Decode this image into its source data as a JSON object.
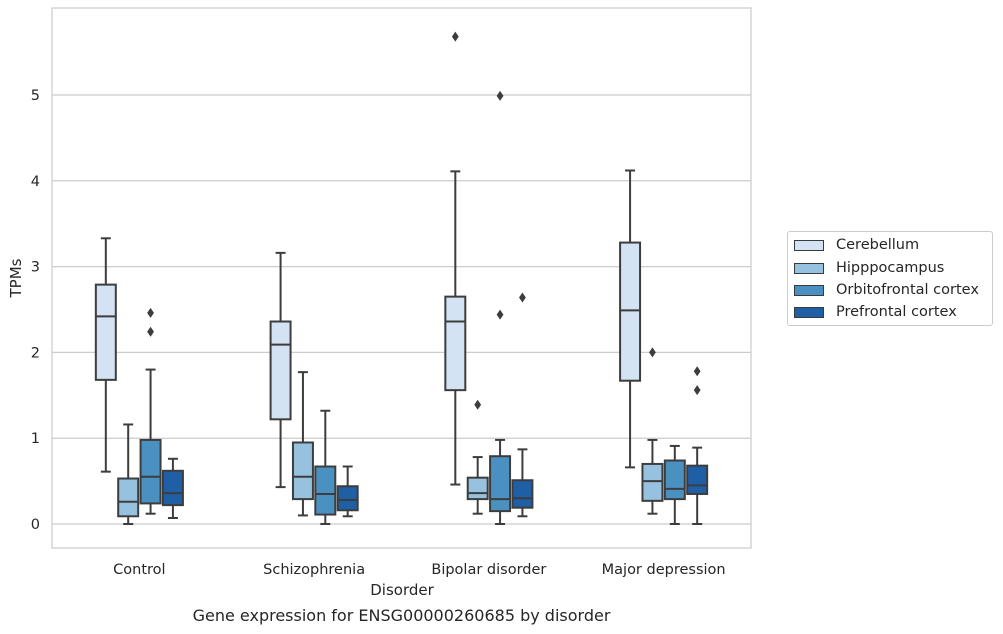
{
  "chart_data": {
    "type": "box",
    "xlabel": "Disorder",
    "ylabel": "TPMs",
    "caption": "Gene expression for ENSG00000260685 by disorder",
    "ylim": [
      -0.28,
      6.0
    ],
    "yticks": [
      0,
      1,
      2,
      3,
      4,
      5
    ],
    "grid": true,
    "legend_position": "right",
    "categories": [
      "Control",
      "Schizophrenia",
      "Bipolar disorder",
      "Major depression"
    ],
    "series": [
      {
        "name": "Cerebellum",
        "color": "#d4e3f3",
        "boxes": [
          {
            "whisker_low": 0.61,
            "q1": 1.68,
            "median": 2.42,
            "q3": 2.79,
            "whisker_high": 3.33,
            "outliers": []
          },
          {
            "whisker_low": 0.43,
            "q1": 1.22,
            "median": 2.09,
            "q3": 2.36,
            "whisker_high": 3.16,
            "outliers": []
          },
          {
            "whisker_low": 0.46,
            "q1": 1.56,
            "median": 2.36,
            "q3": 2.65,
            "whisker_high": 4.11,
            "outliers": [
              5.68
            ]
          },
          {
            "whisker_low": 0.66,
            "q1": 1.67,
            "median": 2.49,
            "q3": 3.28,
            "whisker_high": 4.12,
            "outliers": []
          }
        ]
      },
      {
        "name": "Hipppocampus",
        "color": "#97c2df",
        "boxes": [
          {
            "whisker_low": 0.0,
            "q1": 0.09,
            "median": 0.26,
            "q3": 0.53,
            "whisker_high": 1.16,
            "outliers": []
          },
          {
            "whisker_low": 0.1,
            "q1": 0.29,
            "median": 0.55,
            "q3": 0.95,
            "whisker_high": 1.77,
            "outliers": []
          },
          {
            "whisker_low": 0.12,
            "q1": 0.29,
            "median": 0.36,
            "q3": 0.54,
            "whisker_high": 0.78,
            "outliers": [
              1.39
            ]
          },
          {
            "whisker_low": 0.12,
            "q1": 0.27,
            "median": 0.5,
            "q3": 0.7,
            "whisker_high": 0.98,
            "outliers": [
              2.0
            ]
          }
        ]
      },
      {
        "name": "Orbitofrontal cortex",
        "color": "#4a91c2",
        "boxes": [
          {
            "whisker_low": 0.12,
            "q1": 0.24,
            "median": 0.55,
            "q3": 0.98,
            "whisker_high": 1.8,
            "outliers": [
              2.24,
              2.46
            ]
          },
          {
            "whisker_low": 0.0,
            "q1": 0.11,
            "median": 0.35,
            "q3": 0.67,
            "whisker_high": 1.32,
            "outliers": []
          },
          {
            "whisker_low": 0.0,
            "q1": 0.15,
            "median": 0.29,
            "q3": 0.79,
            "whisker_high": 0.98,
            "outliers": [
              2.44,
              4.99
            ]
          },
          {
            "whisker_low": 0.0,
            "q1": 0.29,
            "median": 0.41,
            "q3": 0.74,
            "whisker_high": 0.91,
            "outliers": []
          }
        ]
      },
      {
        "name": "Prefrontal cortex",
        "color": "#1f5fa6",
        "boxes": [
          {
            "whisker_low": 0.07,
            "q1": 0.22,
            "median": 0.36,
            "q3": 0.62,
            "whisker_high": 0.76,
            "outliers": []
          },
          {
            "whisker_low": 0.09,
            "q1": 0.16,
            "median": 0.28,
            "q3": 0.44,
            "whisker_high": 0.67,
            "outliers": []
          },
          {
            "whisker_low": 0.09,
            "q1": 0.19,
            "median": 0.3,
            "q3": 0.51,
            "whisker_high": 0.87,
            "outliers": [
              2.64
            ]
          },
          {
            "whisker_low": 0.0,
            "q1": 0.35,
            "median": 0.45,
            "q3": 0.68,
            "whisker_high": 0.89,
            "outliers": [
              1.56,
              1.78
            ]
          }
        ]
      }
    ]
  }
}
